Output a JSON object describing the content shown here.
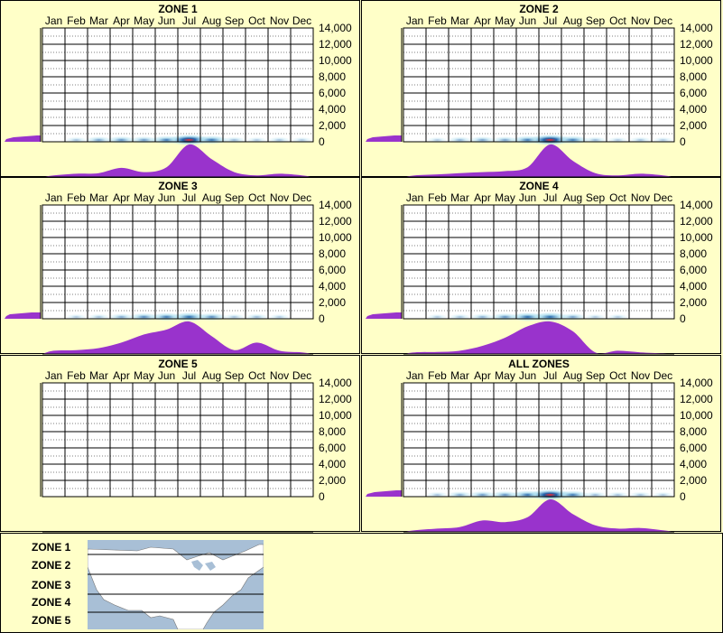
{
  "months": [
    "Jan",
    "Feb",
    "Mar",
    "Apr",
    "May",
    "Jun",
    "Jul",
    "Aug",
    "Sep",
    "Oct",
    "Nov",
    "Dec"
  ],
  "y_ticks": [
    "14,000",
    "12,000",
    "10,000",
    "8,000",
    "6,000",
    "4,000",
    "2,000",
    "0"
  ],
  "colors": {
    "background": "#ffffc8",
    "distribution": "#9933cc",
    "heat_low": "#aaddee",
    "heat_mid": "#1b5fa8",
    "heat_high": "#ff2222"
  },
  "chart_data": [
    {
      "type": "heatmap",
      "title": "ZONE 1",
      "xlabel": "",
      "ylabel": "",
      "categories": [
        "Jan",
        "Feb",
        "Mar",
        "Apr",
        "May",
        "Jun",
        "Jul",
        "Aug",
        "Sep",
        "Oct",
        "Nov",
        "Dec"
      ],
      "ylim": [
        0,
        14000
      ],
      "elevation_density": [
        0.05,
        0.25,
        0.9
      ],
      "heat_band": [
        0,
        0.1,
        0.3,
        0.4,
        0.35,
        0.55,
        1.0,
        0.6,
        0.15,
        0.05,
        0.1,
        0.05
      ],
      "monthly_distribution": [
        0.05,
        0.1,
        0.12,
        0.28,
        0.15,
        0.3,
        1.0,
        0.55,
        0.15,
        0.05,
        0.1,
        0.05
      ]
    },
    {
      "type": "heatmap",
      "title": "ZONE 2",
      "xlabel": "",
      "ylabel": "",
      "categories": [
        "Jan",
        "Feb",
        "Mar",
        "Apr",
        "May",
        "Jun",
        "Jul",
        "Aug",
        "Sep",
        "Oct",
        "Nov",
        "Dec"
      ],
      "ylim": [
        0,
        14000
      ],
      "elevation_density": [
        0.05,
        0.2,
        0.8
      ],
      "heat_band": [
        0,
        0.05,
        0.2,
        0.3,
        0.3,
        0.55,
        1.0,
        0.55,
        0.15,
        0.05,
        0.1,
        0.05
      ],
      "monthly_distribution": [
        0.05,
        0.08,
        0.12,
        0.15,
        0.18,
        0.3,
        1.0,
        0.5,
        0.12,
        0.05,
        0.1,
        0.05
      ]
    },
    {
      "type": "heatmap",
      "title": "ZONE 3",
      "xlabel": "",
      "ylabel": "",
      "categories": [
        "Jan",
        "Feb",
        "Mar",
        "Apr",
        "May",
        "Jun",
        "Jul",
        "Aug",
        "Sep",
        "Oct",
        "Nov",
        "Dec"
      ],
      "ylim": [
        0,
        14000
      ],
      "elevation_density": [
        0.05,
        0.15,
        0.75
      ],
      "heat_band": [
        0,
        0.05,
        0.1,
        0.25,
        0.45,
        0.55,
        0.7,
        0.45,
        0.1,
        0.15,
        0.05,
        0
      ],
      "monthly_distribution": [
        0.1,
        0.12,
        0.18,
        0.35,
        0.6,
        0.75,
        1.0,
        0.55,
        0.12,
        0.35,
        0.1,
        0.05
      ]
    },
    {
      "type": "heatmap",
      "title": "ZONE 4",
      "xlabel": "",
      "ylabel": "",
      "categories": [
        "Jan",
        "Feb",
        "Mar",
        "Apr",
        "May",
        "Jun",
        "Jul",
        "Aug",
        "Sep",
        "Oct",
        "Nov",
        "Dec"
      ],
      "ylim": [
        0,
        14000
      ],
      "elevation_density": [
        0.05,
        0.2,
        0.85
      ],
      "heat_band": [
        0,
        0.05,
        0.1,
        0.2,
        0.4,
        0.65,
        0.75,
        0.3,
        0.05,
        0.05,
        0,
        0
      ],
      "monthly_distribution": [
        0.05,
        0.06,
        0.1,
        0.25,
        0.5,
        0.85,
        1.0,
        0.7,
        0.05,
        0.1,
        0.05,
        0.02
      ]
    },
    {
      "type": "heatmap",
      "title": "ZONE 5",
      "xlabel": "",
      "ylabel": "",
      "categories": [
        "Jan",
        "Feb",
        "Mar",
        "Apr",
        "May",
        "Jun",
        "Jul",
        "Aug",
        "Sep",
        "Oct",
        "Nov",
        "Dec"
      ],
      "ylim": [
        0,
        14000
      ],
      "elevation_density": [],
      "heat_band": [
        0,
        0,
        0,
        0,
        0,
        0,
        0,
        0,
        0,
        0,
        0,
        0
      ],
      "monthly_distribution": []
    },
    {
      "type": "heatmap",
      "title": "ALL ZONES",
      "xlabel": "",
      "ylabel": "",
      "categories": [
        "Jan",
        "Feb",
        "Mar",
        "Apr",
        "May",
        "Jun",
        "Jul",
        "Aug",
        "Sep",
        "Oct",
        "Nov",
        "Dec"
      ],
      "ylim": [
        0,
        14000
      ],
      "elevation_density": [
        0.05,
        0.25,
        0.85
      ],
      "heat_band": [
        0,
        0.1,
        0.25,
        0.35,
        0.4,
        0.6,
        1.0,
        0.55,
        0.15,
        0.1,
        0.1,
        0.05
      ],
      "monthly_distribution": [
        0.05,
        0.1,
        0.15,
        0.35,
        0.3,
        0.45,
        1.0,
        0.55,
        0.2,
        0.1,
        0.12,
        0.05
      ]
    }
  ],
  "legend": {
    "zones": [
      "ZONE 1",
      "ZONE 2",
      "ZONE 3",
      "ZONE 4",
      "ZONE 5"
    ]
  }
}
